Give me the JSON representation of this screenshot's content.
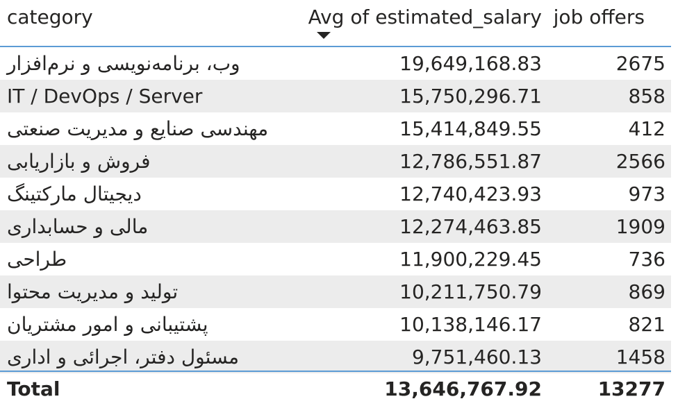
{
  "chart_data": {
    "type": "table",
    "columns": [
      "category",
      "Avg of estimated_salary",
      "job offers"
    ],
    "sorted_column": "Avg of estimated_salary",
    "sort_direction": "descending",
    "rows": [
      {
        "category": "وب، برنامه‌نویسی و نرم‌افزار",
        "avg_salary": "19,649,168.83",
        "job_offers": "2675"
      },
      {
        "category": "IT / DevOps / Server",
        "avg_salary": "15,750,296.71",
        "job_offers": "858"
      },
      {
        "category": "مهندسی صنایع و مدیریت صنعتی",
        "avg_salary": "15,414,849.55",
        "job_offers": "412"
      },
      {
        "category": "فروش و بازاریابی",
        "avg_salary": "12,786,551.87",
        "job_offers": "2566"
      },
      {
        "category": "دیجیتال مارکتینگ",
        "avg_salary": "12,740,423.93",
        "job_offers": "973"
      },
      {
        "category": "مالی و حسابداری",
        "avg_salary": "12,274,463.85",
        "job_offers": "1909"
      },
      {
        "category": "طراحی",
        "avg_salary": "11,900,229.45",
        "job_offers": "736"
      },
      {
        "category": "تولید و مدیریت محتوا",
        "avg_salary": "10,211,750.79",
        "job_offers": "869"
      },
      {
        "category": "پشتیبانی و امور مشتریان",
        "avg_salary": "10,138,146.17",
        "job_offers": "821"
      },
      {
        "category": "مسئول دفتر، اجرائی و اداری",
        "avg_salary": "9,751,460.13",
        "job_offers": "1458"
      }
    ],
    "total": {
      "label": "Total",
      "avg_salary": "13,646,767.92",
      "job_offers": "13277"
    }
  },
  "colors": {
    "accent_rule": "#5b9bd5",
    "alt_row": "#ececec",
    "text": "#252423"
  },
  "icons": {
    "sort": "sort-descending-arrow-icon"
  }
}
